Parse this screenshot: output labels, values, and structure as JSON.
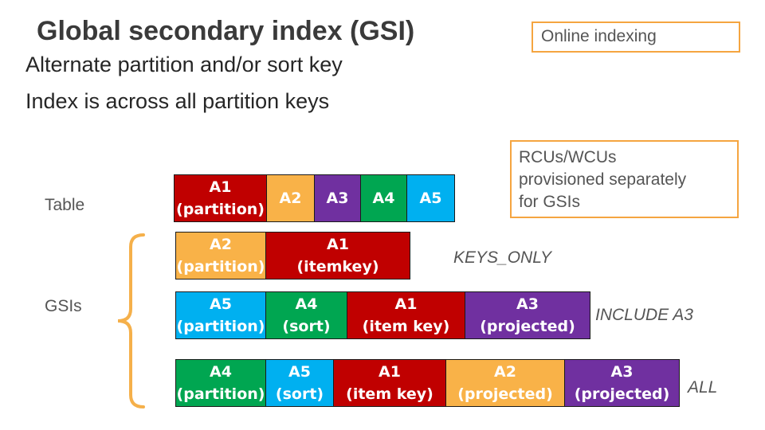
{
  "title": "Global secondary index (GSI)",
  "subtitle_lines": [
    "Alternate partition and/or sort key",
    "Index is across all partition keys"
  ],
  "notes": {
    "online_indexing": "Online indexing",
    "capacity": [
      "RCUs/WCUs",
      "provisioned separately",
      "for GSIs"
    ]
  },
  "labels": {
    "table": "Table",
    "gsis": "GSIs"
  },
  "colors": {
    "red": "#c00000",
    "orange": "#f9b248",
    "purple": "#7030a0",
    "green": "#00a651",
    "blue": "#00b0f0",
    "brace": "#f5b04a",
    "note_border": "#f5a540"
  },
  "rows": [
    {
      "id": "table",
      "tag": "",
      "cells": [
        {
          "name": "A1",
          "role": "(partition)",
          "color": "#c00000"
        },
        {
          "name": "A2",
          "role": "",
          "color": "#f9b248"
        },
        {
          "name": "A3",
          "role": "",
          "color": "#7030a0"
        },
        {
          "name": "A4",
          "role": "",
          "color": "#00a651"
        },
        {
          "name": "A5",
          "role": "",
          "color": "#00b0f0"
        }
      ]
    },
    {
      "id": "gsi-keys-only",
      "tag": "KEYS_ONLY",
      "cells": [
        {
          "name": "A2",
          "role": "(partition)",
          "color": "#f9b248"
        },
        {
          "name": "A1",
          "role": "(itemkey)",
          "color": "#c00000"
        }
      ]
    },
    {
      "id": "gsi-include",
      "tag": "INCLUDE A3",
      "cells": [
        {
          "name": "A5",
          "role": "(partition)",
          "color": "#00b0f0"
        },
        {
          "name": "A4",
          "role": "(sort)",
          "color": "#00a651"
        },
        {
          "name": "A1",
          "role": "(item key)",
          "color": "#c00000"
        },
        {
          "name": "A3",
          "role": "(projected)",
          "color": "#7030a0"
        }
      ]
    },
    {
      "id": "gsi-all",
      "tag": "ALL",
      "cells": [
        {
          "name": "A4",
          "role": "(partition)",
          "color": "#00a651"
        },
        {
          "name": "A5",
          "role": "(sort)",
          "color": "#00b0f0"
        },
        {
          "name": "A1",
          "role": "(item key)",
          "color": "#c00000"
        },
        {
          "name": "A2",
          "role": "(projected)",
          "color": "#f9b248"
        },
        {
          "name": "A3",
          "role": "(projected)",
          "color": "#7030a0"
        }
      ]
    }
  ]
}
